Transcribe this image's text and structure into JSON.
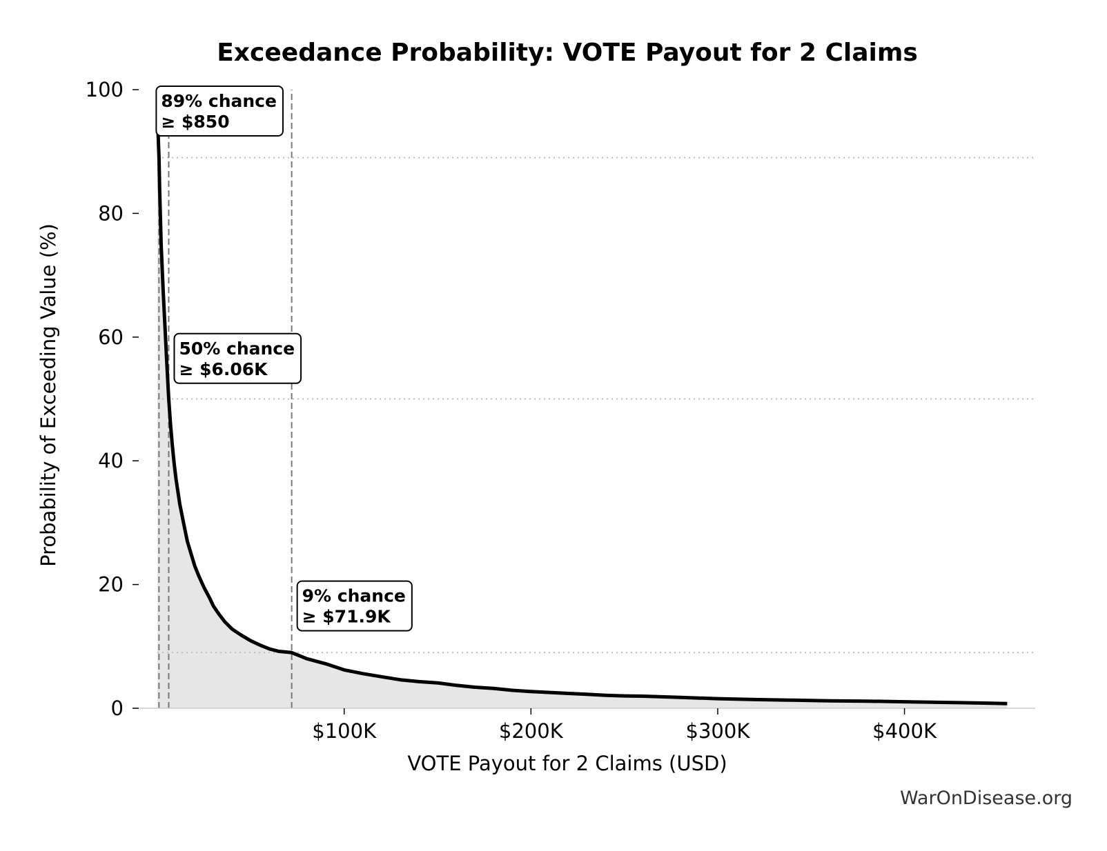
{
  "chart_data": {
    "type": "area",
    "title": "Exceedance Probability: VOTE Payout for 2 Claims",
    "xlabel": "VOTE Payout for 2 Claims (USD)",
    "ylabel": "Probability of Exceeding Value (%)",
    "xlim": [
      -10000,
      470000
    ],
    "ylim": [
      0,
      100
    ],
    "x_ticks": [
      {
        "value": 100000,
        "label": "$100K"
      },
      {
        "value": 200000,
        "label": "$200K"
      },
      {
        "value": 300000,
        "label": "$300K"
      },
      {
        "value": 400000,
        "label": "$400K"
      }
    ],
    "y_ticks": [
      {
        "value": 0,
        "label": "0"
      },
      {
        "value": 20,
        "label": "20"
      },
      {
        "value": 40,
        "label": "40"
      },
      {
        "value": 60,
        "label": "60"
      },
      {
        "value": 80,
        "label": "80"
      },
      {
        "value": 100,
        "label": "100"
      }
    ],
    "grid": false,
    "series": [
      {
        "x": [
          0,
          200,
          400,
          600,
          850,
          1200,
          2000,
          3000,
          4000,
          5000,
          6060,
          7000,
          8000,
          9000,
          10000,
          12000,
          14000,
          16000,
          18000,
          20000,
          22000,
          25000,
          28000,
          30000,
          33000,
          36000,
          40000,
          45000,
          50000,
          55000,
          60000,
          65000,
          71900,
          80000,
          90000,
          100000,
          110000,
          120000,
          130000,
          140000,
          150000,
          160000,
          170000,
          180000,
          190000,
          200000,
          210000,
          220000,
          230000,
          240000,
          250000,
          260000,
          270000,
          280000,
          290000,
          300000,
          320000,
          340000,
          360000,
          380000,
          400000,
          420000,
          440000,
          455000
        ],
        "y": [
          100,
          95,
          93,
          91,
          89,
          84,
          75,
          68,
          62,
          56,
          50,
          46,
          42.5,
          39.5,
          37,
          33,
          30,
          27,
          25,
          23,
          21.5,
          19.5,
          17.8,
          16.5,
          15.2,
          14,
          12.8,
          11.8,
          10.9,
          10.2,
          9.6,
          9.2,
          9,
          8,
          7.2,
          6.2,
          5.6,
          5.1,
          4.6,
          4.3,
          4.1,
          3.7,
          3.4,
          3.2,
          2.9,
          2.7,
          2.55,
          2.4,
          2.25,
          2.1,
          2.0,
          1.95,
          1.85,
          1.75,
          1.65,
          1.55,
          1.4,
          1.3,
          1.2,
          1.15,
          1.05,
          0.95,
          0.85,
          0.75
        ]
      }
    ],
    "annotations": [
      {
        "x": 850,
        "prob": 89,
        "line1": "89% chance",
        "line2": "≥ $850"
      },
      {
        "x": 6060,
        "prob": 50,
        "line1": "50% chance",
        "line2": "≥ $6.06K"
      },
      {
        "x": 71900,
        "prob": 9,
        "line1": "9% chance",
        "line2": "≥ $71.9K"
      }
    ],
    "colors": {
      "line": "#000000",
      "fill": "#e6e6e6",
      "guide_vertical": "#777777",
      "guide_horizontal": "#bbbbbb"
    }
  },
  "footer": {
    "watermark": "WarOnDisease.org"
  }
}
